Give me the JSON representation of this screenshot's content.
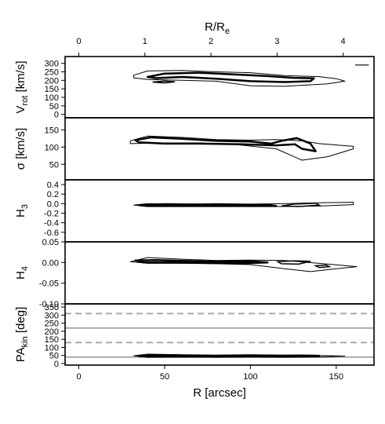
{
  "chart_data": {
    "type": "contour",
    "x_axis": {
      "label": "R [arcsec]",
      "range": [
        -8,
        172
      ],
      "ticks": [
        0,
        50,
        100,
        150
      ]
    },
    "top_axis": {
      "label": "R/R",
      "label_sub": "e",
      "ticks": [
        0,
        1,
        2,
        3,
        4
      ],
      "arcsec_per_Re": 38.5
    },
    "panels": [
      {
        "id": "vrot",
        "ylabel_pre": "V",
        "ylabel_sub": "rot",
        "ylabel_post": " [km/s]",
        "ylim": [
          -20,
          340
        ],
        "ticks": [
          0,
          50,
          100,
          150,
          200,
          250,
          300
        ],
        "outer": [
          [
            32,
            230
          ],
          [
            40,
            255
          ],
          [
            60,
            258
          ],
          [
            80,
            250
          ],
          [
            100,
            245
          ],
          [
            120,
            228
          ],
          [
            140,
            222
          ],
          [
            150,
            210
          ],
          [
            155,
            195
          ],
          [
            145,
            180
          ],
          [
            120,
            165
          ],
          [
            100,
            168
          ],
          [
            80,
            195
          ],
          [
            60,
            200
          ],
          [
            40,
            205
          ],
          [
            32,
            215
          ]
        ],
        "inner": [
          [
            40,
            220
          ],
          [
            50,
            240
          ],
          [
            70,
            245
          ],
          [
            90,
            235
          ],
          [
            110,
            225
          ],
          [
            125,
            215
          ],
          [
            137,
            212
          ],
          [
            135,
            195
          ],
          [
            120,
            190
          ],
          [
            100,
            195
          ],
          [
            80,
            210
          ],
          [
            60,
            220
          ],
          [
            45,
            213
          ]
        ],
        "extras": [
          [
            [
              43,
              190
            ],
            [
              50,
              196
            ],
            [
              56,
              192
            ],
            [
              50,
              185
            ]
          ]
        ],
        "segments": [
          [
            [
              161,
              290
            ],
            [
              169,
              290
            ]
          ]
        ]
      },
      {
        "id": "sigma",
        "ylabel_pre": "σ [km/s]",
        "ylabel_sub": "",
        "ylabel_post": "",
        "ylim": [
          5,
          185
        ],
        "ticks": [
          50,
          100,
          150
        ],
        "outer": [
          [
            30,
            118
          ],
          [
            40,
            132
          ],
          [
            60,
            128
          ],
          [
            80,
            122
          ],
          [
            100,
            120
          ],
          [
            115,
            122
          ],
          [
            130,
            118
          ],
          [
            140,
            110
          ],
          [
            160,
            102
          ],
          [
            160,
            95
          ],
          [
            145,
            72
          ],
          [
            130,
            62
          ],
          [
            115,
            95
          ],
          [
            90,
            108
          ],
          [
            70,
            112
          ],
          [
            50,
            112
          ],
          [
            30,
            110
          ]
        ],
        "inner": [
          [
            33,
            120
          ],
          [
            42,
            128
          ],
          [
            60,
            124
          ],
          [
            80,
            118
          ],
          [
            100,
            116
          ],
          [
            112,
            110
          ],
          [
            118,
            118
          ],
          [
            127,
            126
          ],
          [
            135,
            110
          ],
          [
            138,
            88
          ],
          [
            130,
            95
          ],
          [
            126,
            108
          ],
          [
            115,
            105
          ],
          [
            95,
            108
          ],
          [
            70,
            110
          ],
          [
            50,
            110
          ],
          [
            35,
            114
          ]
        ],
        "extras": [],
        "segments": []
      },
      {
        "id": "h3",
        "ylabel_pre": "H",
        "ylabel_sub": "3",
        "ylabel_post": "",
        "ylim": [
          -0.8,
          0.5
        ],
        "ticks": [
          -0.6,
          -0.4,
          -0.2,
          0.0,
          0.2,
          0.4
        ],
        "outer": [
          [
            32,
            -0.03
          ],
          [
            40,
            0.0
          ],
          [
            60,
            -0.01
          ],
          [
            80,
            0.0
          ],
          [
            100,
            -0.01
          ],
          [
            120,
            0.0
          ],
          [
            140,
            0.02
          ],
          [
            160,
            0.03
          ],
          [
            160,
            -0.02
          ],
          [
            140,
            -0.05
          ],
          [
            120,
            -0.06
          ],
          [
            100,
            -0.06
          ],
          [
            80,
            -0.05
          ],
          [
            60,
            -0.06
          ],
          [
            40,
            -0.05
          ]
        ],
        "inner": [
          [
            35,
            -0.03
          ],
          [
            50,
            -0.01
          ],
          [
            70,
            -0.02
          ],
          [
            90,
            -0.02
          ],
          [
            110,
            -0.02
          ],
          [
            115,
            -0.05
          ],
          [
            100,
            -0.05
          ],
          [
            80,
            -0.05
          ],
          [
            60,
            -0.05
          ],
          [
            40,
            -0.05
          ]
        ],
        "extras": [
          [
            [
              118,
              -0.05
            ],
            [
              125,
              -0.01
            ],
            [
              138,
              0.01
            ],
            [
              140,
              -0.03
            ],
            [
              128,
              -0.06
            ]
          ]
        ],
        "segments": []
      },
      {
        "id": "h4",
        "ylabel_pre": "H",
        "ylabel_sub": "4",
        "ylabel_post": "",
        "ylim": [
          -0.1,
          0.05
        ],
        "ticks": [
          -0.1,
          -0.05,
          0.0,
          0.05
        ],
        "outer": [
          [
            30,
            0.002
          ],
          [
            40,
            0.012
          ],
          [
            60,
            0.008
          ],
          [
            80,
            0.005
          ],
          [
            100,
            0.006
          ],
          [
            120,
            0.005
          ],
          [
            140,
            -0.002
          ],
          [
            162,
            -0.01
          ],
          [
            150,
            -0.015
          ],
          [
            135,
            -0.022
          ],
          [
            120,
            -0.015
          ],
          [
            100,
            -0.005
          ],
          [
            80,
            -0.003
          ],
          [
            60,
            -0.002
          ],
          [
            40,
            -0.002
          ]
        ],
        "inner": [
          [
            33,
            0.005
          ],
          [
            45,
            0.006
          ],
          [
            60,
            0.004
          ],
          [
            80,
            0.002
          ],
          [
            100,
            0.003
          ],
          [
            110,
            0.0
          ],
          [
            95,
            -0.002
          ],
          [
            75,
            -0.001
          ],
          [
            55,
            0.0
          ],
          [
            38,
            0.0
          ]
        ],
        "extras": [
          [
            [
              116,
              0.002
            ],
            [
              125,
              0.004
            ],
            [
              135,
              0.003
            ],
            [
              128,
              -0.004
            ],
            [
              118,
              -0.003
            ]
          ],
          [
            [
              138,
              -0.008
            ],
            [
              144,
              -0.006
            ],
            [
              146,
              -0.01
            ],
            [
              140,
              -0.012
            ]
          ]
        ],
        "segments": []
      },
      {
        "id": "pakin",
        "ylabel_pre": "PA",
        "ylabel_sub": "kin",
        "ylabel_post": " [deg]",
        "ylim": [
          -10,
          370
        ],
        "ticks": [
          0,
          50,
          100,
          150,
          200,
          250,
          300,
          350
        ],
        "outer": [
          [
            32,
            48
          ],
          [
            40,
            58
          ],
          [
            60,
            55
          ],
          [
            80,
            52
          ],
          [
            100,
            55
          ],
          [
            120,
            52
          ],
          [
            140,
            50
          ],
          [
            155,
            46
          ],
          [
            140,
            40
          ],
          [
            120,
            38
          ],
          [
            100,
            40
          ],
          [
            80,
            38
          ],
          [
            60,
            40
          ],
          [
            40,
            38
          ]
        ],
        "inner": [
          [
            35,
            46
          ],
          [
            45,
            52
          ],
          [
            60,
            50
          ],
          [
            80,
            47
          ],
          [
            100,
            50
          ],
          [
            115,
            47
          ],
          [
            130,
            50
          ],
          [
            140,
            48
          ],
          [
            130,
            44
          ],
          [
            115,
            42
          ],
          [
            100,
            44
          ],
          [
            80,
            43
          ],
          [
            60,
            43
          ],
          [
            45,
            42
          ]
        ],
        "extras": [],
        "segments": [],
        "hlines": [
          {
            "y": 40,
            "style": "solid",
            "color": "#aaaaaa"
          },
          {
            "y": 130,
            "style": "dashed",
            "color": "#aaaaaa"
          },
          {
            "y": 220,
            "style": "solid",
            "color": "#aaaaaa"
          },
          {
            "y": 310,
            "style": "dashed",
            "color": "#aaaaaa"
          }
        ]
      }
    ]
  }
}
